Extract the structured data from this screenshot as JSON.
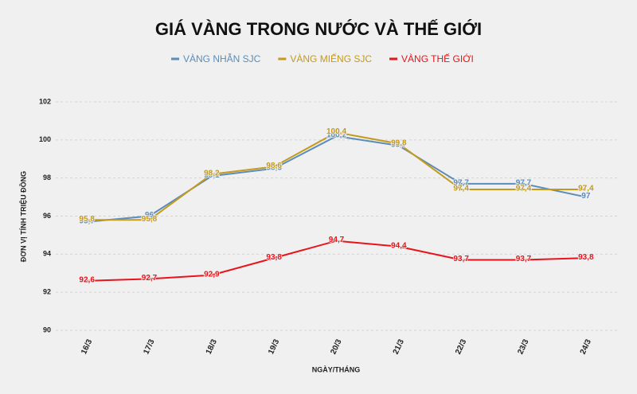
{
  "chart_data": {
    "type": "line",
    "title": "GIÁ VÀNG TRONG NƯỚC VÀ THẾ GIỚI",
    "x_label": "NGÀY/THÁNG",
    "y_label": "ĐƠN VỊ TÍNH TRIỆU ĐỒNG",
    "categories": [
      "16/3",
      "17/3",
      "18/3",
      "19/3",
      "20/3",
      "21/3",
      "22/3",
      "23/3",
      "24/3"
    ],
    "series": [
      {
        "name": "VÀNG NHẪN SJC",
        "color": "#5b8db8",
        "values": [
          95.7,
          96,
          98.1,
          98.5,
          100.2,
          99.7,
          97.7,
          97.7,
          97
        ],
        "value_labels": [
          "95,7",
          "96",
          "98,1",
          "98,5",
          "100,2",
          "99,7",
          "97,7",
          "97,7",
          "97"
        ]
      },
      {
        "name": "VÀNG MIẾNG SJC",
        "color": "#c49a1c",
        "values": [
          95.8,
          95.8,
          98.2,
          98.6,
          100.4,
          99.8,
          97.4,
          97.4,
          97.4
        ],
        "value_labels": [
          "95,8",
          "95,8",
          "98,2",
          "98,6",
          "100,4",
          "99,8",
          "97,4",
          "97,4",
          "97,4"
        ]
      },
      {
        "name": "VÀNG THẾ GIỚI",
        "color": "#e8141b",
        "values": [
          92.6,
          92.7,
          92.9,
          93.8,
          94.7,
          94.4,
          93.7,
          93.7,
          93.8
        ],
        "value_labels": [
          "92,6",
          "92,7",
          "92,9",
          "93,8",
          "94,7",
          "94,4",
          "93,7",
          "93,7",
          "93,8"
        ]
      }
    ],
    "ylim": [
      90,
      102
    ],
    "yticks": [
      90,
      92,
      94,
      96,
      98,
      100,
      102
    ],
    "grid": true
  }
}
